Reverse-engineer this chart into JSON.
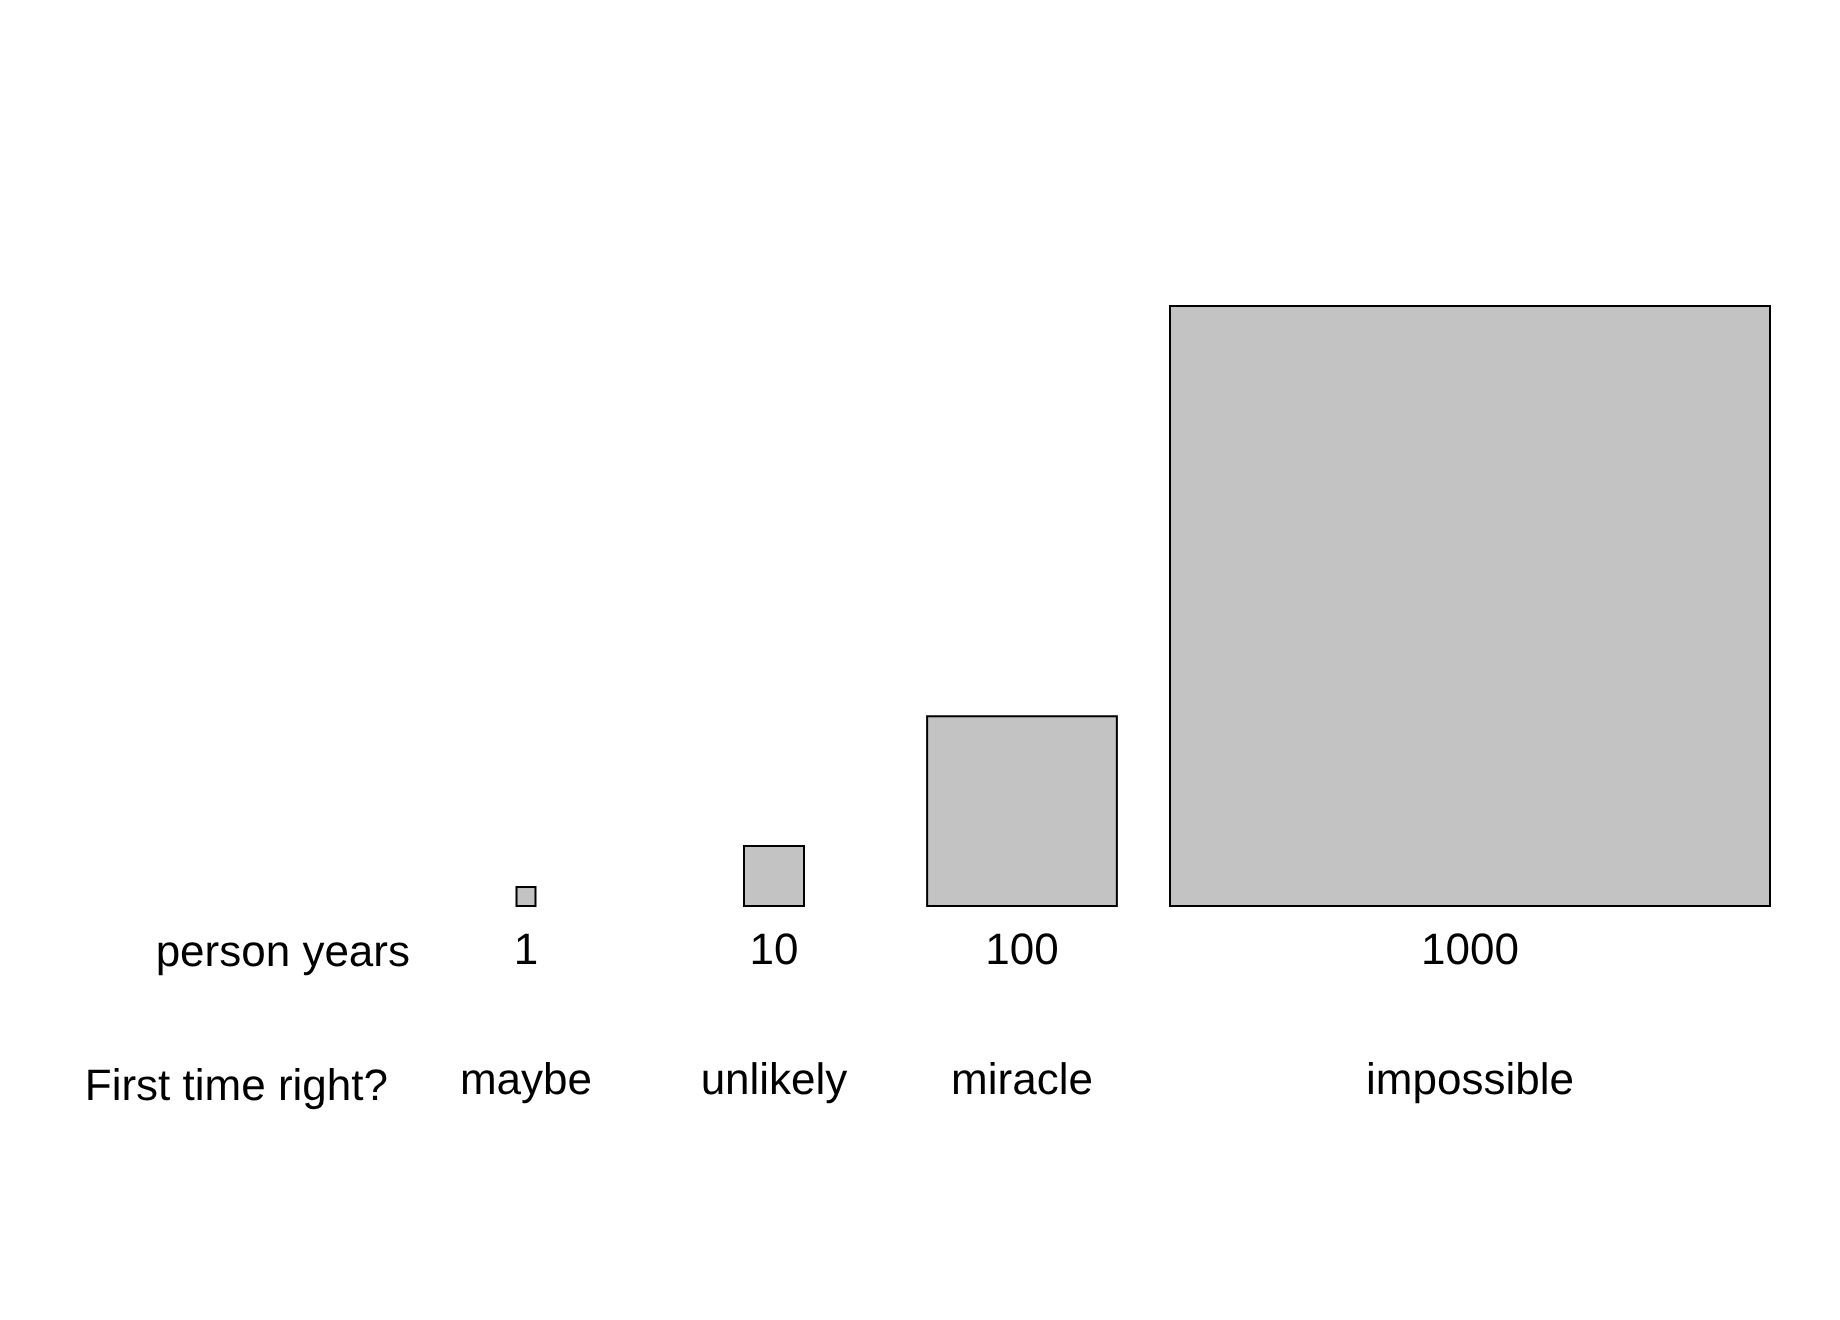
{
  "chart_data": {
    "type": "other",
    "categories": [
      "maybe",
      "unlikely",
      "miracle",
      "impossible"
    ],
    "values": [
      1,
      10,
      100,
      1000
    ],
    "color": "#c3c3c3",
    "data_labels": true,
    "annotations": [
      "person years",
      "First time right?"
    ]
  }
}
